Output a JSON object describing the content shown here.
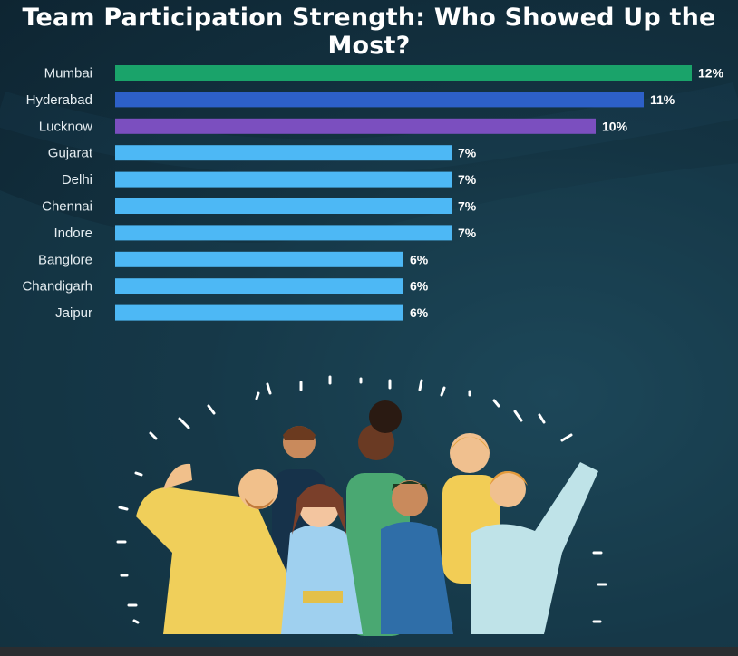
{
  "title": "Team Participation Strength: Who Showed Up the Most?",
  "chart_data": {
    "type": "bar",
    "orientation": "horizontal",
    "title": "Team Participation Strength: Who Showed Up the Most?",
    "categories": [
      "Mumbai",
      "Hyderabad",
      "Lucknow",
      "Gujarat",
      "Delhi",
      "Chennai",
      "Indore",
      "Banglore",
      "Chandigarh",
      "Jaipur"
    ],
    "values": [
      12,
      11,
      10,
      7,
      7,
      7,
      7,
      6,
      6,
      6
    ],
    "value_labels": [
      "12%",
      "11%",
      "10%",
      "7%",
      "7%",
      "7%",
      "7%",
      "6%",
      "6%",
      "6%"
    ],
    "colors": [
      "#1aa36a",
      "#2d60c8",
      "#7b4fbf",
      "#4db8f5",
      "#4db8f5",
      "#4db8f5",
      "#4db8f5",
      "#4db8f5",
      "#4db8f5",
      "#4db8f5"
    ],
    "xlim": [
      0,
      12
    ],
    "grid": false,
    "legend": "none"
  },
  "illustration": {
    "icon": "diverse-team-celebrating-illustration"
  }
}
